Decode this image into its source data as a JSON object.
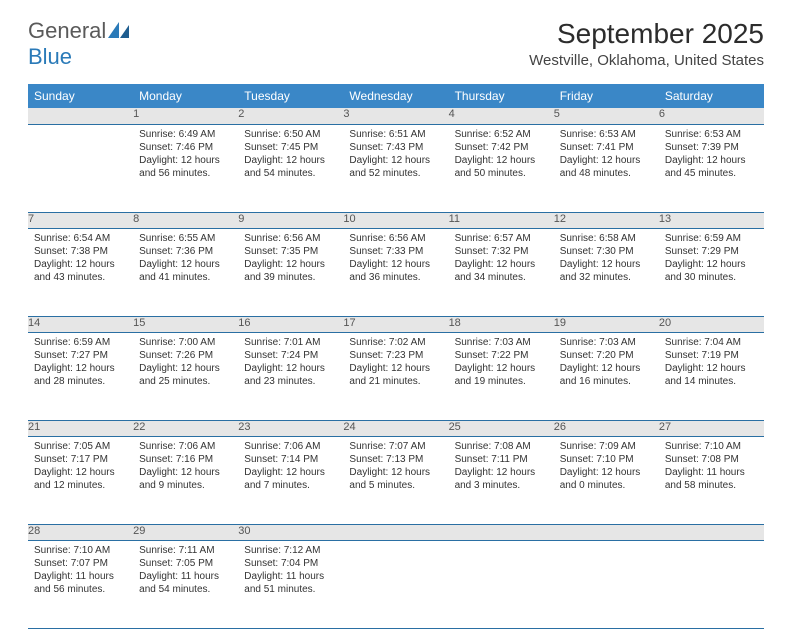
{
  "logo": {
    "text1": "General",
    "text2": "Blue"
  },
  "title": "September 2025",
  "location": "Westville, Oklahoma, United States",
  "colors": {
    "header_bg": "#3a87c7",
    "header_text": "#ffffff",
    "daynum_bg": "#e6e6e6",
    "row_border": "#2a6fa3",
    "logo_gray": "#5a5a5a",
    "logo_blue": "#2a7ab8"
  },
  "day_headers": [
    "Sunday",
    "Monday",
    "Tuesday",
    "Wednesday",
    "Thursday",
    "Friday",
    "Saturday"
  ],
  "weeks": [
    {
      "nums": [
        "",
        "1",
        "2",
        "3",
        "4",
        "5",
        "6"
      ],
      "cells": [
        null,
        {
          "sunrise": "6:49 AM",
          "sunset": "7:46 PM",
          "daylight": "12 hours and 56 minutes."
        },
        {
          "sunrise": "6:50 AM",
          "sunset": "7:45 PM",
          "daylight": "12 hours and 54 minutes."
        },
        {
          "sunrise": "6:51 AM",
          "sunset": "7:43 PM",
          "daylight": "12 hours and 52 minutes."
        },
        {
          "sunrise": "6:52 AM",
          "sunset": "7:42 PM",
          "daylight": "12 hours and 50 minutes."
        },
        {
          "sunrise": "6:53 AM",
          "sunset": "7:41 PM",
          "daylight": "12 hours and 48 minutes."
        },
        {
          "sunrise": "6:53 AM",
          "sunset": "7:39 PM",
          "daylight": "12 hours and 45 minutes."
        }
      ]
    },
    {
      "nums": [
        "7",
        "8",
        "9",
        "10",
        "11",
        "12",
        "13"
      ],
      "cells": [
        {
          "sunrise": "6:54 AM",
          "sunset": "7:38 PM",
          "daylight": "12 hours and 43 minutes."
        },
        {
          "sunrise": "6:55 AM",
          "sunset": "7:36 PM",
          "daylight": "12 hours and 41 minutes."
        },
        {
          "sunrise": "6:56 AM",
          "sunset": "7:35 PM",
          "daylight": "12 hours and 39 minutes."
        },
        {
          "sunrise": "6:56 AM",
          "sunset": "7:33 PM",
          "daylight": "12 hours and 36 minutes."
        },
        {
          "sunrise": "6:57 AM",
          "sunset": "7:32 PM",
          "daylight": "12 hours and 34 minutes."
        },
        {
          "sunrise": "6:58 AM",
          "sunset": "7:30 PM",
          "daylight": "12 hours and 32 minutes."
        },
        {
          "sunrise": "6:59 AM",
          "sunset": "7:29 PM",
          "daylight": "12 hours and 30 minutes."
        }
      ]
    },
    {
      "nums": [
        "14",
        "15",
        "16",
        "17",
        "18",
        "19",
        "20"
      ],
      "cells": [
        {
          "sunrise": "6:59 AM",
          "sunset": "7:27 PM",
          "daylight": "12 hours and 28 minutes."
        },
        {
          "sunrise": "7:00 AM",
          "sunset": "7:26 PM",
          "daylight": "12 hours and 25 minutes."
        },
        {
          "sunrise": "7:01 AM",
          "sunset": "7:24 PM",
          "daylight": "12 hours and 23 minutes."
        },
        {
          "sunrise": "7:02 AM",
          "sunset": "7:23 PM",
          "daylight": "12 hours and 21 minutes."
        },
        {
          "sunrise": "7:03 AM",
          "sunset": "7:22 PM",
          "daylight": "12 hours and 19 minutes."
        },
        {
          "sunrise": "7:03 AM",
          "sunset": "7:20 PM",
          "daylight": "12 hours and 16 minutes."
        },
        {
          "sunrise": "7:04 AM",
          "sunset": "7:19 PM",
          "daylight": "12 hours and 14 minutes."
        }
      ]
    },
    {
      "nums": [
        "21",
        "22",
        "23",
        "24",
        "25",
        "26",
        "27"
      ],
      "cells": [
        {
          "sunrise": "7:05 AM",
          "sunset": "7:17 PM",
          "daylight": "12 hours and 12 minutes."
        },
        {
          "sunrise": "7:06 AM",
          "sunset": "7:16 PM",
          "daylight": "12 hours and 9 minutes."
        },
        {
          "sunrise": "7:06 AM",
          "sunset": "7:14 PM",
          "daylight": "12 hours and 7 minutes."
        },
        {
          "sunrise": "7:07 AM",
          "sunset": "7:13 PM",
          "daylight": "12 hours and 5 minutes."
        },
        {
          "sunrise": "7:08 AM",
          "sunset": "7:11 PM",
          "daylight": "12 hours and 3 minutes."
        },
        {
          "sunrise": "7:09 AM",
          "sunset": "7:10 PM",
          "daylight": "12 hours and 0 minutes."
        },
        {
          "sunrise": "7:10 AM",
          "sunset": "7:08 PM",
          "daylight": "11 hours and 58 minutes."
        }
      ]
    },
    {
      "nums": [
        "28",
        "29",
        "30",
        "",
        "",
        "",
        ""
      ],
      "cells": [
        {
          "sunrise": "7:10 AM",
          "sunset": "7:07 PM",
          "daylight": "11 hours and 56 minutes."
        },
        {
          "sunrise": "7:11 AM",
          "sunset": "7:05 PM",
          "daylight": "11 hours and 54 minutes."
        },
        {
          "sunrise": "7:12 AM",
          "sunset": "7:04 PM",
          "daylight": "11 hours and 51 minutes."
        },
        null,
        null,
        null,
        null
      ]
    }
  ],
  "labels": {
    "sunrise": "Sunrise: ",
    "sunset": "Sunset: ",
    "daylight": "Daylight: "
  }
}
